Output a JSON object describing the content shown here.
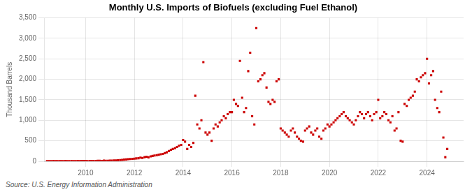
{
  "chart_data": {
    "type": "scatter",
    "title": "Monthly U.S. Imports of Biofuels (excluding Fuel Ethanol)",
    "y_label": "Thousand Barrels",
    "annotations": [
      "Source: U.S. Energy Information Administration"
    ],
    "color": "#cc0000",
    "marker": "square",
    "grid": true,
    "xlim": [
      2008.3,
      2025.5
    ],
    "xticks": [
      2010,
      2012,
      2014,
      2016,
      2018,
      2020,
      2022,
      2024
    ],
    "ylim": [
      0,
      3500
    ],
    "yticks": [
      0,
      500,
      {
        "value": 1000,
        "label": "1,000"
      },
      {
        "value": 1500,
        "label": "1,500"
      },
      {
        "value": 2000,
        "label": "2,000"
      },
      {
        "value": 2500,
        "label": "2,500"
      },
      {
        "value": 3000,
        "label": "3,000"
      },
      {
        "value": 3500,
        "label": "3,500"
      }
    ],
    "x": [
      2008.42,
      2008.5,
      2008.58,
      2008.67,
      2008.75,
      2008.83,
      2008.92,
      2009.0,
      2009.08,
      2009.17,
      2009.25,
      2009.33,
      2009.42,
      2009.5,
      2009.58,
      2009.67,
      2009.75,
      2009.83,
      2009.92,
      2010.0,
      2010.08,
      2010.17,
      2010.25,
      2010.33,
      2010.42,
      2010.5,
      2010.58,
      2010.67,
      2010.75,
      2010.83,
      2010.92,
      2011.0,
      2011.08,
      2011.17,
      2011.25,
      2011.33,
      2011.42,
      2011.5,
      2011.58,
      2011.67,
      2011.75,
      2011.83,
      2011.92,
      2012.0,
      2012.08,
      2012.17,
      2012.25,
      2012.33,
      2012.42,
      2012.5,
      2012.58,
      2012.67,
      2012.75,
      2012.83,
      2012.92,
      2013.0,
      2013.08,
      2013.17,
      2013.25,
      2013.33,
      2013.42,
      2013.5,
      2013.58,
      2013.67,
      2013.75,
      2013.83,
      2013.92,
      2014.0,
      2014.08,
      2014.17,
      2014.25,
      2014.33,
      2014.42,
      2014.5,
      2014.58,
      2014.67,
      2014.75,
      2014.83,
      2014.92,
      2015.0,
      2015.08,
      2015.17,
      2015.25,
      2015.33,
      2015.42,
      2015.5,
      2015.58,
      2015.67,
      2015.75,
      2015.83,
      2015.92,
      2016.0,
      2016.08,
      2016.17,
      2016.25,
      2016.33,
      2016.42,
      2016.5,
      2016.58,
      2016.67,
      2016.75,
      2016.83,
      2016.92,
      2017.0,
      2017.08,
      2017.17,
      2017.25,
      2017.33,
      2017.42,
      2017.5,
      2017.58,
      2017.67,
      2017.75,
      2017.83,
      2017.92,
      2018.0,
      2018.08,
      2018.17,
      2018.25,
      2018.33,
      2018.42,
      2018.5,
      2018.58,
      2018.67,
      2018.75,
      2018.83,
      2018.92,
      2019.0,
      2019.08,
      2019.17,
      2019.25,
      2019.33,
      2019.42,
      2019.5,
      2019.58,
      2019.67,
      2019.75,
      2019.83,
      2019.92,
      2020.0,
      2020.08,
      2020.17,
      2020.25,
      2020.33,
      2020.42,
      2020.5,
      2020.58,
      2020.67,
      2020.75,
      2020.83,
      2020.92,
      2021.0,
      2021.08,
      2021.17,
      2021.25,
      2021.33,
      2021.42,
      2021.5,
      2021.58,
      2021.67,
      2021.75,
      2021.83,
      2021.92,
      2022.0,
      2022.08,
      2022.17,
      2022.25,
      2022.33,
      2022.42,
      2022.5,
      2022.58,
      2022.67,
      2022.75,
      2022.83,
      2022.92,
      2023.0,
      2023.08,
      2023.17,
      2023.25,
      2023.33,
      2023.42,
      2023.5,
      2023.58,
      2023.67,
      2023.75,
      2023.83,
      2023.92,
      2024.0,
      2024.08,
      2024.17,
      2024.25,
      2024.33,
      2024.42,
      2024.5,
      2024.58,
      2024.67,
      2024.75,
      2024.83
    ],
    "values": [
      5,
      3,
      4,
      6,
      5,
      4,
      3,
      5,
      4,
      6,
      5,
      4,
      6,
      5,
      4,
      6,
      5,
      8,
      7,
      6,
      5,
      8,
      7,
      6,
      9,
      10,
      12,
      8,
      15,
      10,
      12,
      14,
      18,
      20,
      22,
      25,
      30,
      35,
      40,
      45,
      50,
      55,
      60,
      65,
      70,
      75,
      90,
      80,
      100,
      110,
      95,
      120,
      130,
      140,
      150,
      160,
      170,
      180,
      200,
      220,
      250,
      280,
      300,
      320,
      350,
      380,
      400,
      520,
      480,
      300,
      400,
      350,
      450,
      1600,
      900,
      800,
      1000,
      2420,
      700,
      650,
      700,
      500,
      800,
      900,
      850,
      950,
      1000,
      1100,
      1050,
      1150,
      1200,
      1200,
      1500,
      1400,
      1350,
      2450,
      1550,
      1200,
      1300,
      2200,
      2650,
      1100,
      900,
      3250,
      1950,
      2000,
      2100,
      2150,
      1800,
      1450,
      1400,
      1500,
      1450,
      1950,
      2000,
      800,
      750,
      700,
      650,
      600,
      750,
      800,
      700,
      600,
      550,
      500,
      480,
      750,
      800,
      850,
      700,
      650,
      750,
      800,
      600,
      550,
      750,
      800,
      900,
      850,
      900,
      950,
      1000,
      1050,
      1100,
      1150,
      1200,
      1100,
      1050,
      1000,
      950,
      900,
      1000,
      1100,
      1200,
      1150,
      1050,
      1150,
      1200,
      1100,
      1000,
      1150,
      1200,
      1500,
      1050,
      1100,
      1200,
      1150,
      1000,
      950,
      1100,
      750,
      800,
      1200,
      500,
      480,
      1400,
      1350,
      1500,
      1550,
      1600,
      1700,
      2000,
      1950,
      2050,
      2100,
      2150,
      2500,
      1900,
      2100,
      2200,
      1500,
      1300,
      1200,
      1700,
      580,
      100,
      300
    ]
  }
}
